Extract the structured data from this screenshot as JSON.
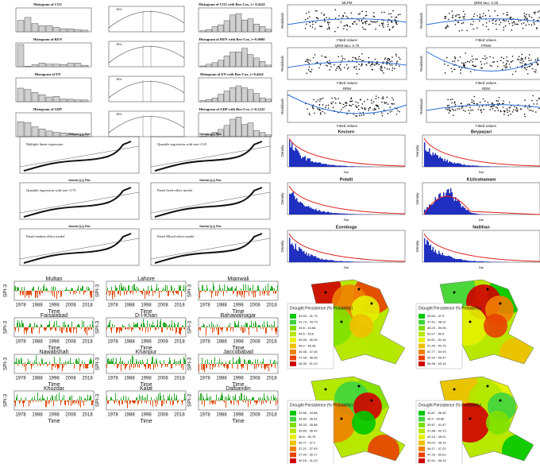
{
  "box_cox": [
    {
      "hist_title": "Histogram of CO2",
      "ci": "95%",
      "bc_title": "Histogram of CO2 with Box-Cox, λ= 0.4242"
    },
    {
      "hist_title": "Histogram of REN",
      "ci": "95%",
      "bc_title": "Histogram of REN with Box-Cox, λ=0.0686"
    },
    {
      "hist_title": "Histogram of EN",
      "ci": "95%",
      "bc_title": "Histogram of EN with Box-Cox, λ=0.4242"
    },
    {
      "hist_title": "Histogram of GDP",
      "ci": "95%",
      "bc_title": "Histogram of GDP with Box-Cox, λ=0.2222"
    }
  ],
  "residuals": {
    "x_label": "Fitted Values",
    "y_label": "Residuals",
    "titles": [
      "MLPM",
      "QRM tau= 0.25",
      "QRM tau= 0.75",
      "FFEM",
      "RRM",
      "REM"
    ]
  },
  "qq": {
    "title": "Normal Q-Q Plot",
    "panels": [
      "Multiple linear regression",
      "Quantile regression with tau= 0.25",
      "Quantile regression with tau= 0.75",
      "Panel fixed effect model",
      "Panel random effect model",
      "Panel Mixed effect model"
    ]
  },
  "density": {
    "y_label": "Density",
    "x_label": "Bal",
    "stations": [
      "Keciorn",
      "Beypazari",
      "Polatli",
      "Kizilcahamam",
      "Esenboga",
      "Nallihan"
    ]
  },
  "spi": {
    "y_label": "SPI-3",
    "x_label": "Time",
    "ticks": [
      "1978",
      "1988",
      "1998",
      "2008",
      "2018"
    ],
    "stations": [
      "Multan",
      "Lahore",
      "Mianwali",
      "Faisalabad",
      "D-I-Khan",
      "Bahawalnagar",
      "Nawabshah",
      "Khanpur",
      "Jaccobabad",
      "Khuzdar",
      "Kalat",
      "Dalbandin"
    ]
  },
  "maps": {
    "legend_title": "Drought Persistence (% Probability)",
    "panels": [
      {
        "ranges": [
          "33.83 - 41.73",
          "41.73 - 43.79",
          "43.8 - 44.66",
          "44.6 - 45.6",
          "45.46 - 46.35",
          "46.0 - 46.38",
          "46.38 - 47.46",
          "47.48 - 48.35",
          "48.36 - 51.23"
        ]
      },
      {
        "ranges": [
          "45.84 - 47.5",
          "47.51 - 48.22",
          "48.23 - 50.06",
          "50.07 - 50.6",
          "50.61 - 51.44",
          "51.45 - 52.76",
          "52.77 - 54.93",
          "54.94 - 56.97",
          "56.98 - 63.16"
        ]
      },
      {
        "ranges": [
          "33.56 - 34.88",
          "34.89 - 35.32",
          "35.33 - 35.88",
          "35.89 - 36.49",
          "36.5 - 36.76",
          "36.77 - 37.2",
          "37.21 - 37.93",
          "37.94 - 39.17",
          "39.18 - 41.23"
        ]
      },
      {
        "ranges": [
          "33.87 - 36.39",
          "36.4 - 39.86",
          "39.87 - 41.87",
          "41.88 - 43.13",
          "43.14 - 45.01",
          "45.02 - 46.16",
          "46.17 - 47.22",
          "47.23 - 50.61",
          "50.62 - 56.19"
        ]
      }
    ]
  }
}
